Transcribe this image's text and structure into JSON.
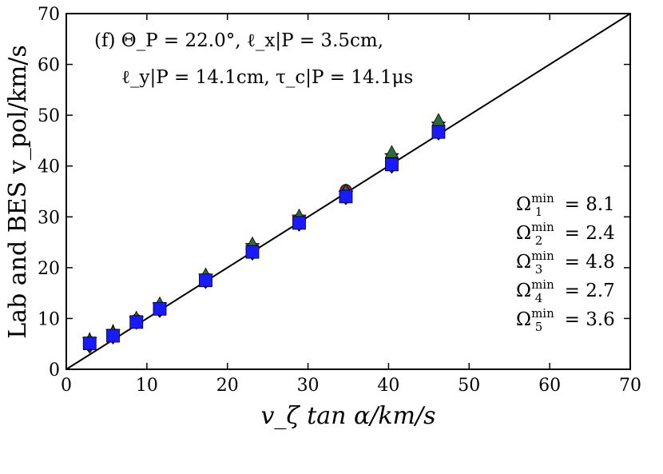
{
  "chart_data": {
    "type": "scatter",
    "title": "",
    "xlabel": "v_ζ tan α/km/s",
    "ylabel": "Lab and BES v_pol/km/s",
    "xlim": [
      0,
      70
    ],
    "ylim": [
      0,
      70
    ],
    "xticks": [
      "0",
      "10",
      "20",
      "30",
      "40",
      "50",
      "60",
      "70"
    ],
    "yticks": [
      "0",
      "10",
      "20",
      "30",
      "40",
      "50",
      "60",
      "70"
    ],
    "grid": false,
    "annotation_line1": "(f) Θ_P = 22.0°, ℓ_x|P = 3.5cm,",
    "annotation_line2": "ℓ_y|P = 14.1cm, τ_c|P = 14.1μs",
    "reference_line": {
      "x": [
        0,
        70
      ],
      "y": [
        0,
        70
      ],
      "color": "#000000"
    },
    "omega_labels": [
      {
        "sym": "Ω",
        "sub": "1",
        "sup": "min",
        "value": "= 8.1"
      },
      {
        "sym": "Ω",
        "sub": "2",
        "sup": "min",
        "value": "= 2.4"
      },
      {
        "sym": "Ω",
        "sub": "3",
        "sup": "min",
        "value": "= 4.8"
      },
      {
        "sym": "Ω",
        "sub": "4",
        "sup": "min",
        "value": "= 2.7"
      },
      {
        "sym": "Ω",
        "sub": "5",
        "sup": "min",
        "value": "= 3.6"
      }
    ],
    "series": [
      {
        "marker": "diamond",
        "color": "#2a2a2a",
        "x": [
          2.9,
          5.8,
          8.7,
          11.6,
          17.3,
          23.1,
          28.9,
          34.7,
          40.4,
          46.2
        ],
        "y": [
          4.6,
          6.4,
          9.3,
          11.6,
          17.3,
          22.9,
          28.6,
          33.8,
          40.0,
          46.5
        ]
      },
      {
        "marker": "circle",
        "color": "#7b1a5e",
        "x": [
          2.9,
          5.8,
          8.7,
          11.6,
          17.3,
          23.1,
          28.9,
          34.7,
          40.4,
          46.2
        ],
        "y": [
          5.4,
          6.9,
          9.7,
          12.3,
          17.9,
          23.6,
          29.4,
          35.3,
          41.3,
          47.4
        ]
      },
      {
        "marker": "star",
        "color": "#e41a1c",
        "x": [
          2.9,
          5.8,
          8.7,
          11.6,
          17.3,
          23.1,
          28.9,
          34.7,
          40.4,
          46.2
        ],
        "y": [
          5.8,
          7.4,
          9.9,
          12.6,
          18.3,
          24.3,
          29.9,
          34.6,
          42.0,
          48.2
        ]
      },
      {
        "marker": "triangle",
        "color": "#2e6b3a",
        "x": [
          2.9,
          5.8,
          8.7,
          11.6,
          17.3,
          23.1,
          28.9,
          34.7,
          40.4,
          46.2
        ],
        "y": [
          5.6,
          7.1,
          10.0,
          12.8,
          18.5,
          24.6,
          30.1,
          35.0,
          42.6,
          48.9
        ]
      },
      {
        "marker": "square",
        "color": "#1a1aff",
        "x": [
          2.9,
          5.8,
          8.7,
          11.6,
          17.3,
          23.1,
          28.9,
          34.7,
          40.4,
          46.2
        ],
        "y": [
          5.1,
          6.6,
          9.3,
          11.9,
          17.5,
          23.1,
          28.8,
          34.0,
          40.3,
          46.7
        ]
      }
    ]
  }
}
